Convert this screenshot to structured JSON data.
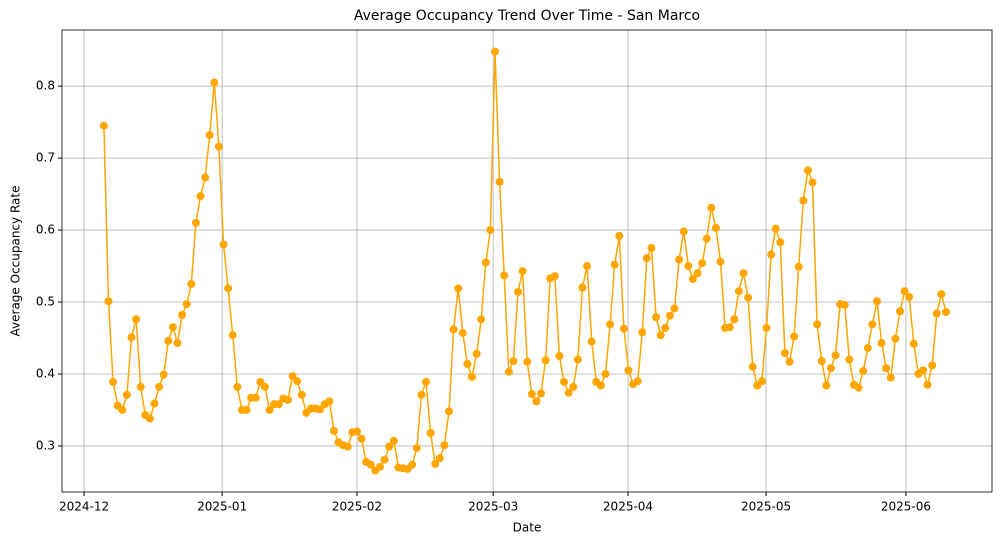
{
  "chart_data": {
    "type": "line",
    "title": "Average Occupancy Trend Over Time - San Marco",
    "xlabel": "Date",
    "ylabel": "Average Occupancy Rate",
    "series": [
      {
        "name": "San Marco",
        "color": "#ffa500",
        "values": [
          0.745,
          0.501,
          0.389,
          0.356,
          0.35,
          0.371,
          0.451,
          0.476,
          0.382,
          0.343,
          0.338,
          0.359,
          0.382,
          0.399,
          0.446,
          0.465,
          0.443,
          0.482,
          0.497,
          0.525,
          0.61,
          0.647,
          0.673,
          0.732,
          0.805,
          0.716,
          0.58,
          0.519,
          0.454,
          0.382,
          0.35,
          0.35,
          0.367,
          0.367,
          0.389,
          0.382,
          0.35,
          0.358,
          0.358,
          0.366,
          0.364,
          0.397,
          0.39,
          0.371,
          0.346,
          0.352,
          0.352,
          0.351,
          0.358,
          0.362,
          0.321,
          0.305,
          0.301,
          0.299,
          0.319,
          0.32,
          0.31,
          0.278,
          0.274,
          0.266,
          0.271,
          0.281,
          0.299,
          0.307,
          0.27,
          0.269,
          0.268,
          0.274,
          0.297,
          0.371,
          0.389,
          0.318,
          0.275,
          0.283,
          0.301,
          0.348,
          0.462,
          0.519,
          0.457,
          0.414,
          0.396,
          0.428,
          0.476,
          0.555,
          0.6,
          0.848,
          0.667,
          0.537,
          0.403,
          0.418,
          0.514,
          0.543,
          0.417,
          0.372,
          0.362,
          0.373,
          0.419,
          0.533,
          0.536,
          0.425,
          0.389,
          0.374,
          0.382,
          0.42,
          0.52,
          0.55,
          0.445,
          0.389,
          0.384,
          0.4,
          0.469,
          0.552,
          0.592,
          0.463,
          0.405,
          0.386,
          0.39,
          0.458,
          0.561,
          0.575,
          0.479,
          0.454,
          0.464,
          0.481,
          0.491,
          0.559,
          0.598,
          0.55,
          0.532,
          0.54,
          0.554,
          0.588,
          0.631,
          0.603,
          0.556,
          0.464,
          0.465,
          0.476,
          0.515,
          0.54,
          0.506,
          0.41,
          0.384,
          0.39,
          0.464,
          0.566,
          0.602,
          0.583,
          0.429,
          0.417,
          0.452,
          0.549,
          0.641,
          0.683,
          0.666,
          0.469,
          0.418,
          0.384,
          0.408,
          0.426,
          0.497,
          0.496,
          0.42,
          0.385,
          0.381,
          0.404,
          0.436,
          0.469,
          0.501,
          0.443,
          0.408,
          0.395,
          0.449,
          0.487,
          0.515,
          0.507,
          0.442,
          0.4,
          0.405,
          0.385,
          0.412,
          0.484,
          0.511,
          0.486
        ]
      }
    ],
    "xlim": [
      -9.1,
      193.0
    ],
    "xticks": [
      {
        "value": -4.3,
        "label": "2024-12"
      },
      {
        "value": 25.7,
        "label": "2025-01"
      },
      {
        "value": 55.0,
        "label": "2025-02"
      },
      {
        "value": 84.6,
        "label": "2025-03"
      },
      {
        "value": 113.9,
        "label": "2025-04"
      },
      {
        "value": 143.9,
        "label": "2025-05"
      },
      {
        "value": 174.3,
        "label": "2025-06"
      }
    ],
    "ylim": [
      0.236,
      0.878
    ],
    "yticks": [
      0.3,
      0.4,
      0.5,
      0.6,
      0.7,
      0.8
    ],
    "grid": true
  }
}
